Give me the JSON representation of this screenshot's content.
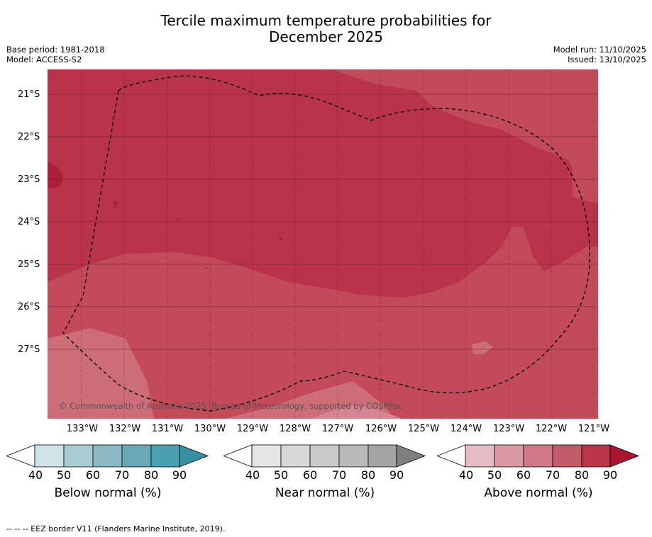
{
  "title_line1": "Tercile maximum temperature probabilities for",
  "title_line2": "December 2025",
  "base_period": "Base period: 1981-2018",
  "model": "Model: ACCESS-S2",
  "model_run": "Model run: 11/10/2025",
  "issued": "Issued: 13/10/2025",
  "lat_labels": [
    "21°S",
    "22°S",
    "23°S",
    "24°S",
    "25°S",
    "26°S",
    "27°S"
  ],
  "lon_labels": [
    "133°W",
    "132°W",
    "131°W",
    "130°W",
    "129°W",
    "128°W",
    "127°W",
    "126°W",
    "125°W",
    "124°W",
    "123°W",
    "122°W",
    "121°W"
  ],
  "copyright": "© Commonwealth of Australia 2025, Bureau of Meteorology, supported by COSPPac",
  "colorbars": [
    {
      "title": "Below normal (%)",
      "ticks": [
        "40",
        "50",
        "60",
        "70",
        "80",
        "90"
      ],
      "colors": [
        "#ffffff",
        "#cfe3e8",
        "#a9cbd2",
        "#8bb8c3",
        "#6aa8b6",
        "#4aa0b1",
        "#3590a6"
      ]
    },
    {
      "title": "Near normal (%)",
      "ticks": [
        "40",
        "50",
        "60",
        "70",
        "80",
        "90"
      ],
      "colors": [
        "#ffffff",
        "#e5e5e5",
        "#d8d8d8",
        "#cacaca",
        "#b9b9b9",
        "#a4a4a4",
        "#7f7f7f"
      ]
    },
    {
      "title": "Above normal (%)",
      "ticks": [
        "40",
        "50",
        "60",
        "70",
        "80",
        "90"
      ],
      "colors": [
        "#ffffff",
        "#e3bcc4",
        "#d99aa4",
        "#cf7a86",
        "#c35c69",
        "#b93548",
        "#a8172f"
      ]
    }
  ],
  "footnote": "--  --  -- EEZ border V11 (Flanders Marine Institute, 2019).",
  "map_colors": {
    "light": "#cd6d78",
    "medium": "#c24a59",
    "dark": "#b9334a",
    "darkest": "#ad1f38"
  }
}
